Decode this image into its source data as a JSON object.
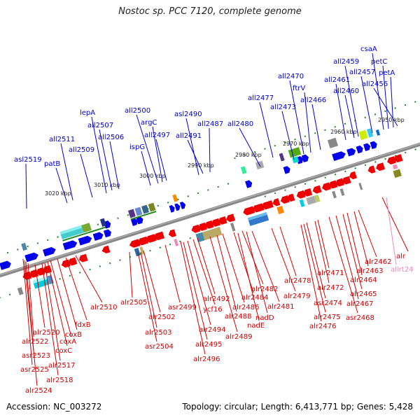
{
  "title": "Nostoc sp. PCC 7120, complete genome",
  "footer": {
    "accession": "Accession: NC_003272",
    "topology": "Topology: circular; Length: 6,413,771 bp; Genes: 5,428"
  },
  "colors": {
    "forward_strand": "#0000ee",
    "reverse_strand": "#ee0000",
    "rna_gene": "#ee88bb",
    "backbone": "#888888",
    "tick": "#228822"
  },
  "scale_labels": [
    "3020 kbp",
    "3010 kbp",
    "3000 kbp",
    "2990 kbp",
    "2980 kbp",
    "2970 kbp",
    "2960 kbp",
    "2950 kbp"
  ],
  "forward_genes": [
    "asl2519",
    "patB",
    "all2511",
    "all2509",
    "lepA",
    "all2507",
    "all2506",
    "ispG",
    "all2500",
    "argC",
    "all2497",
    "asl2490",
    "all2491",
    "all2487",
    "all2480",
    "all2477",
    "all2473",
    "all2470",
    "ftrV",
    "all2466",
    "all2461",
    "all2459",
    "all2460",
    "all2457",
    "csaA",
    "petC",
    "petA",
    "all2456"
  ],
  "reverse_genes": [
    "asr2525",
    "alr2524",
    "asr2523",
    "alr2522",
    "alr2520",
    "alr2518",
    "alr2517",
    "coxC",
    "coxA",
    "coxB",
    "fdxB",
    "alr2510",
    "alr2505",
    "alr2502",
    "alr2503",
    "asr2504",
    "asr2499",
    "alr2496",
    "alr2495",
    "alr2494",
    "ycf16",
    "alr2492",
    "alr2489",
    "alr2488",
    "alr2486",
    "alr2484",
    "alr2482",
    "nadE",
    "nadD",
    "alr2481",
    "alr2479",
    "alr2478",
    "alr2476",
    "alr2475",
    "asr2474",
    "alr2472",
    "alr2471",
    "asr2468",
    "alr2467",
    "alr2465",
    "alr2464",
    "alr2463",
    "alr2462",
    "alr"
  ],
  "rna_genes": [
    "allrt24"
  ]
}
